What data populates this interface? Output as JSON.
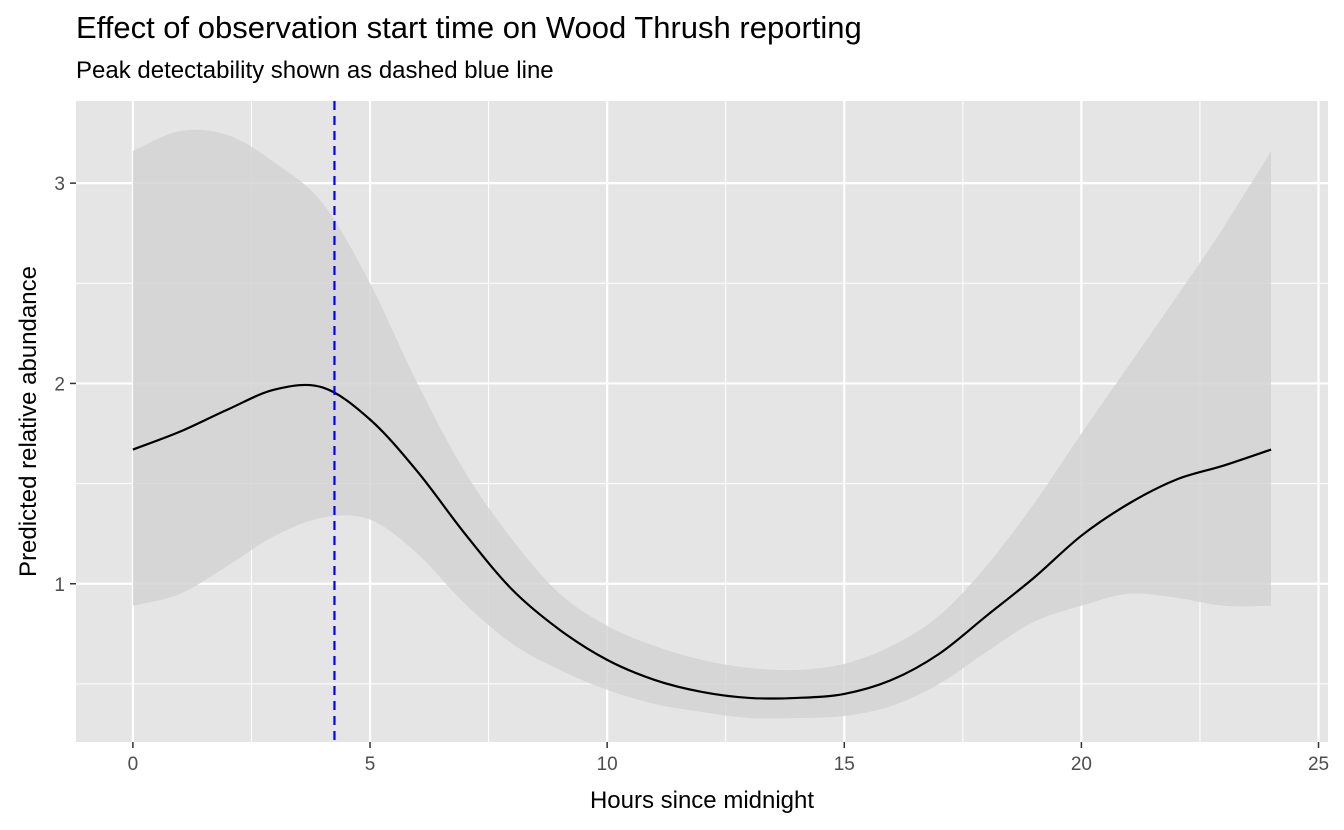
{
  "chart_data": {
    "type": "line",
    "title": "Effect of observation start time on Wood Thrush reporting",
    "subtitle": "Peak detectability shown as dashed blue line",
    "xlabel": "Hours since midnight",
    "ylabel": "Predicted relative abundance",
    "xlim": [
      -1.2,
      25.2
    ],
    "ylim": [
      0.21,
      3.41
    ],
    "x_ticks": [
      0,
      5,
      10,
      15,
      20,
      25
    ],
    "y_ticks": [
      1,
      2,
      3
    ],
    "grid": true,
    "x": [
      0,
      1,
      2,
      3,
      4,
      5,
      6,
      7,
      8,
      9,
      10,
      11,
      12,
      13,
      14,
      15,
      16,
      17,
      18,
      19,
      20,
      21,
      22,
      23,
      24
    ],
    "series": [
      {
        "values": [
          1.67,
          1.76,
          1.87,
          1.97,
          1.98,
          1.82,
          1.56,
          1.25,
          0.97,
          0.77,
          0.62,
          0.52,
          0.46,
          0.43,
          0.43,
          0.45,
          0.52,
          0.65,
          0.84,
          1.03,
          1.24,
          1.4,
          1.52,
          1.59,
          1.67
        ],
        "lower": [
          0.89,
          0.95,
          1.09,
          1.24,
          1.33,
          1.32,
          1.15,
          0.9,
          0.7,
          0.57,
          0.47,
          0.4,
          0.36,
          0.33,
          0.33,
          0.34,
          0.39,
          0.5,
          0.66,
          0.81,
          0.89,
          0.95,
          0.93,
          0.89,
          0.89
        ],
        "upper": [
          3.16,
          3.26,
          3.24,
          3.1,
          2.9,
          2.5,
          2.0,
          1.56,
          1.22,
          0.95,
          0.79,
          0.69,
          0.62,
          0.58,
          0.57,
          0.6,
          0.69,
          0.84,
          1.09,
          1.4,
          1.75,
          2.09,
          2.43,
          2.78,
          3.16
        ]
      }
    ],
    "peak_line_x": 4.25,
    "colors": {
      "panel": "#e5e5e5",
      "grid": "#ffffff",
      "ribbon": "#d4d4d4",
      "line": "#000000",
      "peak_line": "#0000ff",
      "tick_text": "#4d4d4d"
    }
  }
}
